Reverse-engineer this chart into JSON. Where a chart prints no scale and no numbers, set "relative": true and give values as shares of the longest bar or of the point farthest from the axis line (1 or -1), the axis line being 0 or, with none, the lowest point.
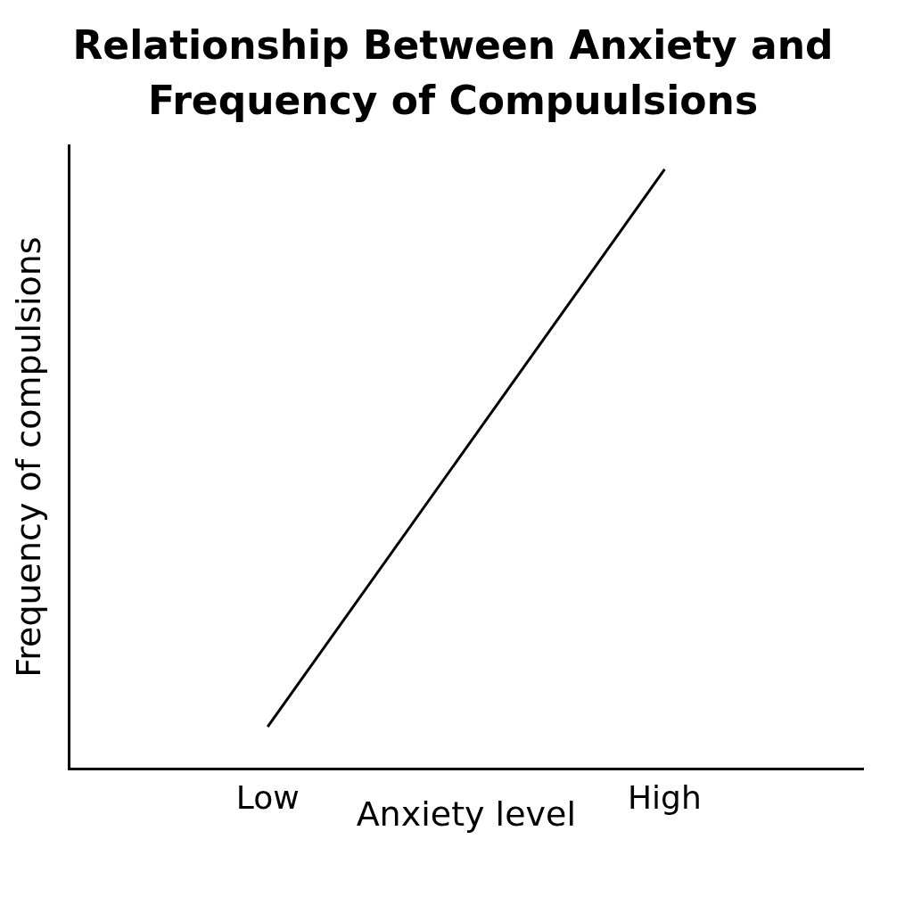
{
  "chart_data": {
    "type": "line",
    "title": "Relationship Between Anxiety and Frequency of Compuulsions",
    "xlabel": "Anxiety level",
    "ylabel": "Frequency of compulsions",
    "categories": [
      "Low",
      "High"
    ],
    "series": [
      {
        "color": "#000000",
        "values": [
          0.07,
          1
        ]
      }
    ],
    "relative": true,
    "legend": false,
    "marker": "none",
    "line_style": "solid"
  }
}
